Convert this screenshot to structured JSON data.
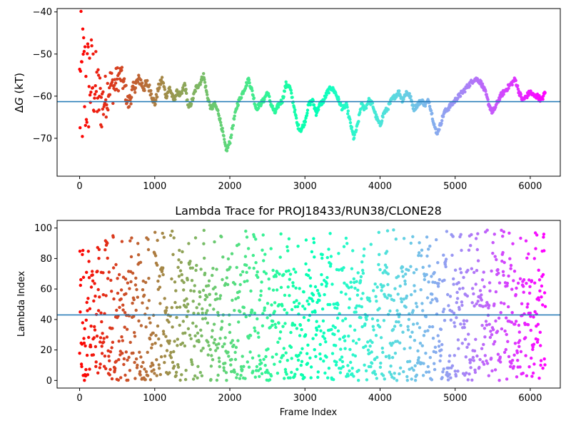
{
  "chart_data": [
    {
      "type": "scatter",
      "ylabel": "ΔG (kT)",
      "ylabel_prefix": "Δ",
      "ylabel_var": "G",
      "ylabel_unit": " (kT)",
      "title": "",
      "xlabel": "",
      "xlim": [
        -300,
        6400
      ],
      "ylim": [
        -79,
        -39.2
      ],
      "xticks": [
        0,
        1000,
        2000,
        3000,
        4000,
        5000,
        6000
      ],
      "xtick_labels": [
        "0",
        "1000",
        "2000",
        "3000",
        "4000",
        "5000",
        "6000"
      ],
      "yticks": [
        -70,
        -60,
        -50,
        -40
      ],
      "ytick_labels": [
        "−70",
        "−60",
        "−50",
        "−40"
      ],
      "hline": -61.3,
      "hline_color": "#1f77b4",
      "colormap": "rainbow",
      "frame_max": 6200,
      "free_energy_trace": [
        [
          0,
          -60
        ],
        [
          50,
          -57
        ],
        [
          100,
          -58
        ],
        [
          150,
          -56
        ],
        [
          200,
          -57
        ],
        [
          250,
          -60
        ],
        [
          300,
          -62
        ],
        [
          350,
          -60
        ],
        [
          400,
          -57
        ],
        [
          450,
          -58
        ],
        [
          500,
          -56
        ],
        [
          550,
          -55
        ],
        [
          600,
          -58
        ],
        [
          650,
          -62
        ],
        [
          700,
          -59
        ],
        [
          750,
          -57
        ],
        [
          800,
          -56
        ],
        [
          850,
          -58
        ],
        [
          900,
          -57
        ],
        [
          950,
          -59
        ],
        [
          1000,
          -62
        ],
        [
          1050,
          -58
        ],
        [
          1100,
          -56
        ],
        [
          1150,
          -60
        ],
        [
          1200,
          -58
        ],
        [
          1250,
          -61
        ],
        [
          1300,
          -59
        ],
        [
          1350,
          -60
        ],
        [
          1400,
          -57
        ],
        [
          1450,
          -63
        ],
        [
          1500,
          -61
        ],
        [
          1550,
          -58
        ],
        [
          1600,
          -57
        ],
        [
          1650,
          -55
        ],
        [
          1700,
          -60
        ],
        [
          1750,
          -63
        ],
        [
          1800,
          -62
        ],
        [
          1850,
          -64
        ],
        [
          1900,
          -68
        ],
        [
          1950,
          -73
        ],
        [
          2000,
          -71
        ],
        [
          2050,
          -66
        ],
        [
          2100,
          -62
        ],
        [
          2150,
          -60
        ],
        [
          2200,
          -58
        ],
        [
          2250,
          -56
        ],
        [
          2300,
          -59
        ],
        [
          2350,
          -63
        ],
        [
          2400,
          -62
        ],
        [
          2450,
          -61
        ],
        [
          2500,
          -59
        ],
        [
          2550,
          -62
        ],
        [
          2600,
          -64
        ],
        [
          2650,
          -62
        ],
        [
          2700,
          -61
        ],
        [
          2750,
          -57
        ],
        [
          2800,
          -58
        ],
        [
          2850,
          -62
        ],
        [
          2900,
          -67
        ],
        [
          2950,
          -68
        ],
        [
          3000,
          -66
        ],
        [
          3050,
          -62
        ],
        [
          3100,
          -61
        ],
        [
          3150,
          -64
        ],
        [
          3200,
          -62
        ],
        [
          3250,
          -61
        ],
        [
          3300,
          -59
        ],
        [
          3350,
          -58
        ],
        [
          3400,
          -59
        ],
        [
          3450,
          -61
        ],
        [
          3500,
          -63
        ],
        [
          3550,
          -62
        ],
        [
          3600,
          -66
        ],
        [
          3650,
          -70
        ],
        [
          3700,
          -67
        ],
        [
          3750,
          -62
        ],
        [
          3800,
          -63
        ],
        [
          3850,
          -61
        ],
        [
          3900,
          -62
        ],
        [
          3950,
          -65
        ],
        [
          4000,
          -67
        ],
        [
          4050,
          -64
        ],
        [
          4100,
          -63
        ],
        [
          4150,
          -61
        ],
        [
          4200,
          -60
        ],
        [
          4250,
          -59
        ],
        [
          4300,
          -61
        ],
        [
          4350,
          -59
        ],
        [
          4400,
          -60
        ],
        [
          4450,
          -63
        ],
        [
          4500,
          -62
        ],
        [
          4550,
          -61
        ],
        [
          4600,
          -62
        ],
        [
          4650,
          -61
        ],
        [
          4700,
          -65
        ],
        [
          4750,
          -69
        ],
        [
          4800,
          -67
        ],
        [
          4850,
          -64
        ],
        [
          4900,
          -63
        ],
        [
          4950,
          -62
        ],
        [
          5000,
          -61
        ],
        [
          5050,
          -60
        ],
        [
          5100,
          -59
        ],
        [
          5150,
          -58
        ],
        [
          5200,
          -57
        ],
        [
          5250,
          -56
        ],
        [
          5300,
          -56
        ],
        [
          5350,
          -57
        ],
        [
          5400,
          -59
        ],
        [
          5450,
          -62
        ],
        [
          5500,
          -64
        ],
        [
          5550,
          -62
        ],
        [
          5600,
          -60
        ],
        [
          5650,
          -59
        ],
        [
          5700,
          -58
        ],
        [
          5750,
          -57
        ],
        [
          5800,
          -56
        ],
        [
          5850,
          -59
        ],
        [
          5900,
          -61
        ],
        [
          5950,
          -60
        ],
        [
          6000,
          -59
        ],
        [
          6050,
          -60
        ],
        [
          6100,
          -60
        ],
        [
          6150,
          -61
        ],
        [
          6200,
          -59
        ]
      ]
    },
    {
      "type": "scatter",
      "title": "Lambda Trace for PROJ18433/RUN38/CLONE28",
      "xlabel": "Frame Index",
      "ylabel": "Lambda Index",
      "xlim": [
        -300,
        6400
      ],
      "ylim": [
        -5,
        105
      ],
      "xticks": [
        0,
        1000,
        2000,
        3000,
        4000,
        5000,
        6000
      ],
      "xtick_labels": [
        "0",
        "1000",
        "2000",
        "3000",
        "4000",
        "5000",
        "6000"
      ],
      "yticks": [
        0,
        20,
        40,
        60,
        80,
        100
      ],
      "ytick_labels": [
        "0",
        "20",
        "40",
        "60",
        "80",
        "100"
      ],
      "hline": 43,
      "hline_color": "#1f77b4",
      "colormap": "rainbow",
      "frame_max": 6200,
      "lambda_range": [
        0,
        99
      ]
    }
  ]
}
